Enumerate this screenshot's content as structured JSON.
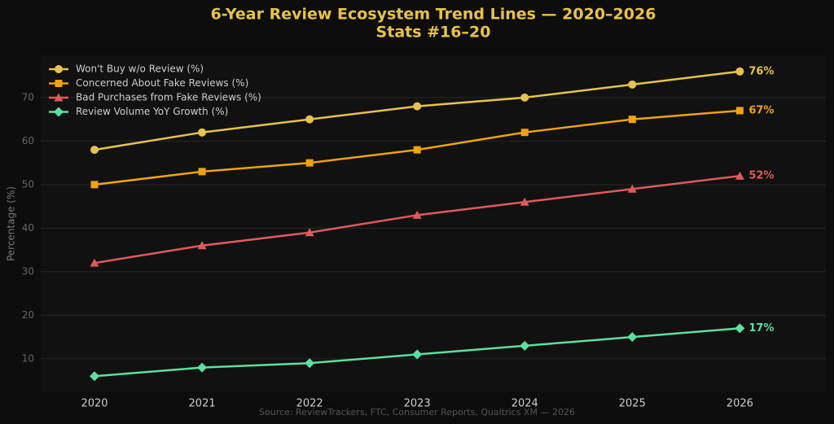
{
  "chart_data": {
    "type": "line",
    "title": "6-Year Review Ecosystem Trend Lines — 2020–2026",
    "subtitle": "Stats #16–20",
    "y_label": "Percentage (%)",
    "source": "Source: ReviewTrackers, FTC, Consumer Reports, Qualtrics XM — 2026",
    "x": [
      2020,
      2021,
      2022,
      2023,
      2024,
      2025,
      2026
    ],
    "xlim": [
      2019.5,
      2026.8
    ],
    "xticks": [
      2020,
      2021,
      2022,
      2023,
      2024,
      2025,
      2026
    ],
    "ylim": [
      2.5,
      79.7
    ],
    "yticks": [
      10,
      20,
      30,
      40,
      50,
      60,
      70
    ],
    "grid": true,
    "legend": "upper left",
    "series": [
      {
        "name": "Won't Buy w/o Review (%)",
        "color": "#e8c24a",
        "marker": "circle",
        "values": [
          58,
          62,
          65,
          68,
          70,
          73,
          76
        ],
        "value_labels": [
          null,
          null,
          null,
          null,
          null,
          null,
          "76%"
        ]
      },
      {
        "name": "Concerned About Fake Reviews (%)",
        "color": "#f0a30a",
        "marker": "square",
        "values": [
          50,
          53,
          55,
          58,
          62,
          65,
          67
        ],
        "value_labels": [
          null,
          null,
          null,
          null,
          null,
          null,
          "67%"
        ]
      },
      {
        "name": "Bad Purchases from Fake Reviews (%)",
        "color": "#e05a5a",
        "marker": "triangle",
        "values": [
          32,
          36,
          39,
          43,
          46,
          49,
          52
        ],
        "value_labels": [
          null,
          null,
          null,
          null,
          null,
          null,
          "52%"
        ]
      },
      {
        "name": "Review Volume YoY Growth (%)",
        "color": "#5ce0a0",
        "marker": "diamond",
        "values": [
          6,
          8,
          9,
          11,
          13,
          15,
          17
        ],
        "value_labels": [
          null,
          null,
          null,
          null,
          null,
          null,
          "17%"
        ]
      }
    ]
  }
}
